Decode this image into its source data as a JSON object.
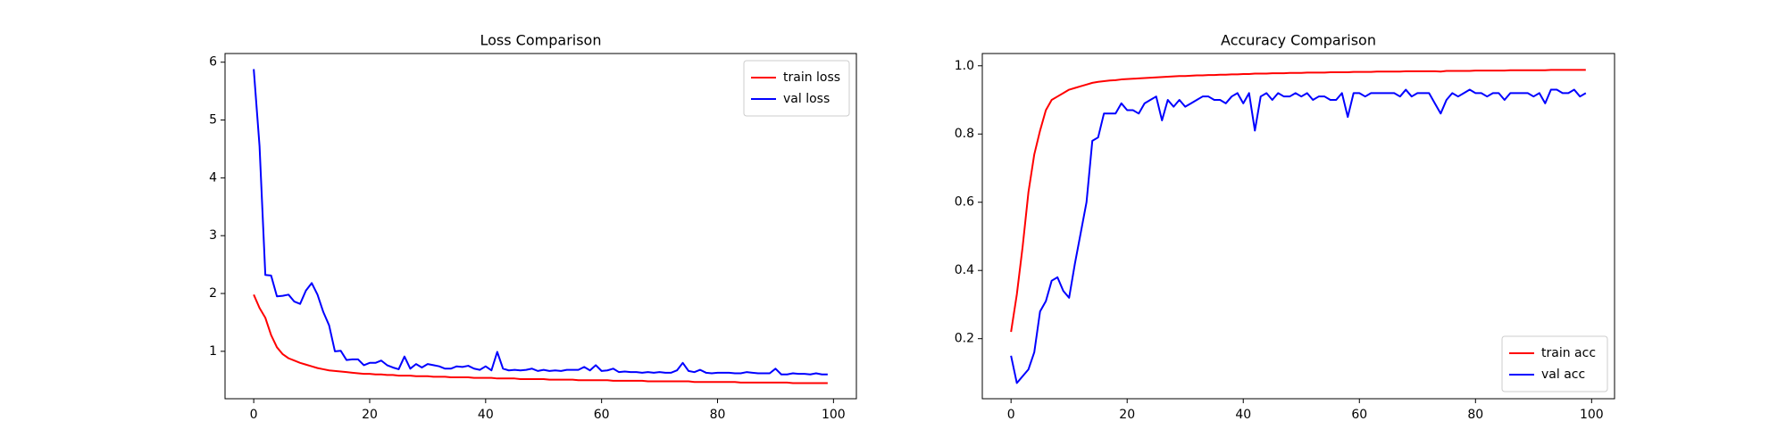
{
  "chart_data": [
    {
      "type": "line",
      "title": "Loss Comparison",
      "x": [
        0,
        1,
        2,
        3,
        4,
        5,
        6,
        7,
        8,
        9,
        10,
        11,
        12,
        13,
        14,
        15,
        16,
        17,
        18,
        19,
        20,
        21,
        22,
        23,
        24,
        25,
        26,
        27,
        28,
        29,
        30,
        31,
        32,
        33,
        34,
        35,
        36,
        37,
        38,
        39,
        40,
        41,
        42,
        43,
        44,
        45,
        46,
        47,
        48,
        49,
        50,
        51,
        52,
        53,
        54,
        55,
        56,
        57,
        58,
        59,
        60,
        61,
        62,
        63,
        64,
        65,
        66,
        67,
        68,
        69,
        70,
        71,
        72,
        73,
        74,
        75,
        76,
        77,
        78,
        79,
        80,
        81,
        82,
        83,
        84,
        85,
        86,
        87,
        88,
        89,
        90,
        91,
        92,
        93,
        94,
        95,
        96,
        97,
        98,
        99
      ],
      "series": [
        {
          "name": "train loss",
          "color": "#ff0000",
          "values": [
            1.98,
            1.75,
            1.58,
            1.28,
            1.07,
            0.95,
            0.88,
            0.84,
            0.8,
            0.77,
            0.74,
            0.71,
            0.69,
            0.67,
            0.66,
            0.65,
            0.64,
            0.63,
            0.62,
            0.61,
            0.61,
            0.6,
            0.6,
            0.59,
            0.59,
            0.58,
            0.58,
            0.58,
            0.57,
            0.57,
            0.57,
            0.56,
            0.56,
            0.56,
            0.55,
            0.55,
            0.55,
            0.55,
            0.54,
            0.54,
            0.54,
            0.54,
            0.53,
            0.53,
            0.53,
            0.53,
            0.52,
            0.52,
            0.52,
            0.52,
            0.52,
            0.51,
            0.51,
            0.51,
            0.51,
            0.51,
            0.5,
            0.5,
            0.5,
            0.5,
            0.5,
            0.5,
            0.49,
            0.49,
            0.49,
            0.49,
            0.49,
            0.49,
            0.48,
            0.48,
            0.48,
            0.48,
            0.48,
            0.48,
            0.48,
            0.48,
            0.47,
            0.47,
            0.47,
            0.47,
            0.47,
            0.47,
            0.47,
            0.47,
            0.46,
            0.46,
            0.46,
            0.46,
            0.46,
            0.46,
            0.46,
            0.46,
            0.46,
            0.45,
            0.45,
            0.45,
            0.45,
            0.45,
            0.45,
            0.45
          ]
        },
        {
          "name": "val loss",
          "color": "#0000ff",
          "values": [
            5.88,
            4.55,
            2.32,
            2.31,
            1.95,
            1.96,
            1.98,
            1.86,
            1.82,
            2.05,
            2.18,
            1.98,
            1.68,
            1.45,
            1.0,
            1.01,
            0.85,
            0.86,
            0.86,
            0.76,
            0.8,
            0.8,
            0.84,
            0.76,
            0.72,
            0.69,
            0.91,
            0.7,
            0.78,
            0.72,
            0.78,
            0.76,
            0.74,
            0.7,
            0.7,
            0.74,
            0.73,
            0.75,
            0.7,
            0.68,
            0.74,
            0.67,
            0.99,
            0.7,
            0.67,
            0.68,
            0.67,
            0.68,
            0.7,
            0.66,
            0.68,
            0.66,
            0.67,
            0.66,
            0.68,
            0.68,
            0.68,
            0.73,
            0.67,
            0.76,
            0.66,
            0.67,
            0.7,
            0.64,
            0.65,
            0.64,
            0.64,
            0.63,
            0.64,
            0.63,
            0.64,
            0.63,
            0.63,
            0.67,
            0.8,
            0.66,
            0.64,
            0.68,
            0.63,
            0.62,
            0.63,
            0.63,
            0.63,
            0.62,
            0.62,
            0.64,
            0.63,
            0.62,
            0.62,
            0.62,
            0.7,
            0.6,
            0.6,
            0.62,
            0.61,
            0.61,
            0.6,
            0.62,
            0.6,
            0.6
          ]
        }
      ],
      "xlim": [
        -4.95,
        103.95
      ],
      "xticks": [
        0,
        20,
        40,
        60,
        80,
        100
      ],
      "ylim": [
        0.18,
        6.15
      ],
      "yticks": [
        1,
        2,
        3,
        4,
        5,
        6
      ],
      "legend": "upper right"
    },
    {
      "type": "line",
      "title": "Accuracy Comparison",
      "x": [
        0,
        1,
        2,
        3,
        4,
        5,
        6,
        7,
        8,
        9,
        10,
        11,
        12,
        13,
        14,
        15,
        16,
        17,
        18,
        19,
        20,
        21,
        22,
        23,
        24,
        25,
        26,
        27,
        28,
        29,
        30,
        31,
        32,
        33,
        34,
        35,
        36,
        37,
        38,
        39,
        40,
        41,
        42,
        43,
        44,
        45,
        46,
        47,
        48,
        49,
        50,
        51,
        52,
        53,
        54,
        55,
        56,
        57,
        58,
        59,
        60,
        61,
        62,
        63,
        64,
        65,
        66,
        67,
        68,
        69,
        70,
        71,
        72,
        73,
        74,
        75,
        76,
        77,
        78,
        79,
        80,
        81,
        82,
        83,
        84,
        85,
        86,
        87,
        88,
        89,
        90,
        91,
        92,
        93,
        94,
        95,
        96,
        97,
        98,
        99
      ],
      "series": [
        {
          "name": "train acc",
          "color": "#ff0000",
          "values": [
            0.22,
            0.33,
            0.47,
            0.63,
            0.74,
            0.81,
            0.87,
            0.9,
            0.91,
            0.92,
            0.93,
            0.935,
            0.94,
            0.945,
            0.95,
            0.953,
            0.955,
            0.957,
            0.958,
            0.96,
            0.961,
            0.962,
            0.963,
            0.964,
            0.965,
            0.966,
            0.967,
            0.968,
            0.969,
            0.97,
            0.97,
            0.971,
            0.972,
            0.972,
            0.973,
            0.973,
            0.974,
            0.974,
            0.975,
            0.975,
            0.976,
            0.976,
            0.977,
            0.977,
            0.977,
            0.978,
            0.978,
            0.978,
            0.979,
            0.979,
            0.979,
            0.98,
            0.98,
            0.98,
            0.98,
            0.981,
            0.981,
            0.981,
            0.981,
            0.982,
            0.982,
            0.982,
            0.982,
            0.983,
            0.983,
            0.983,
            0.983,
            0.983,
            0.984,
            0.984,
            0.984,
            0.984,
            0.984,
            0.984,
            0.983,
            0.985,
            0.985,
            0.985,
            0.985,
            0.985,
            0.986,
            0.986,
            0.986,
            0.986,
            0.986,
            0.986,
            0.987,
            0.987,
            0.987,
            0.987,
            0.987,
            0.987,
            0.987,
            0.988,
            0.988,
            0.988,
            0.988,
            0.988,
            0.988,
            0.988
          ]
        },
        {
          "name": "val acc",
          "color": "#0000ff",
          "values": [
            0.15,
            0.07,
            0.09,
            0.11,
            0.16,
            0.28,
            0.31,
            0.37,
            0.38,
            0.34,
            0.32,
            0.42,
            0.51,
            0.6,
            0.78,
            0.79,
            0.86,
            0.86,
            0.86,
            0.89,
            0.87,
            0.87,
            0.86,
            0.89,
            0.9,
            0.91,
            0.84,
            0.9,
            0.88,
            0.9,
            0.88,
            0.89,
            0.9,
            0.91,
            0.91,
            0.9,
            0.9,
            0.89,
            0.91,
            0.92,
            0.89,
            0.92,
            0.81,
            0.91,
            0.92,
            0.9,
            0.92,
            0.91,
            0.91,
            0.92,
            0.91,
            0.92,
            0.9,
            0.91,
            0.91,
            0.9,
            0.9,
            0.92,
            0.85,
            0.92,
            0.92,
            0.91,
            0.92,
            0.92,
            0.92,
            0.92,
            0.92,
            0.91,
            0.93,
            0.91,
            0.92,
            0.92,
            0.92,
            0.89,
            0.86,
            0.9,
            0.92,
            0.91,
            0.92,
            0.93,
            0.92,
            0.92,
            0.91,
            0.92,
            0.92,
            0.9,
            0.92,
            0.92,
            0.92,
            0.92,
            0.91,
            0.92,
            0.89,
            0.93,
            0.93,
            0.92,
            0.92,
            0.93,
            0.91,
            0.92
          ]
        }
      ],
      "xlim": [
        -4.95,
        103.95
      ],
      "xticks": [
        0,
        20,
        40,
        60,
        80,
        100
      ],
      "ylim": [
        0.024,
        1.036
      ],
      "yticks": [
        0.2,
        0.4,
        0.6,
        0.8,
        {
          "value": 1,
          "label": "1.0"
        }
      ],
      "legend": "lower right"
    }
  ]
}
